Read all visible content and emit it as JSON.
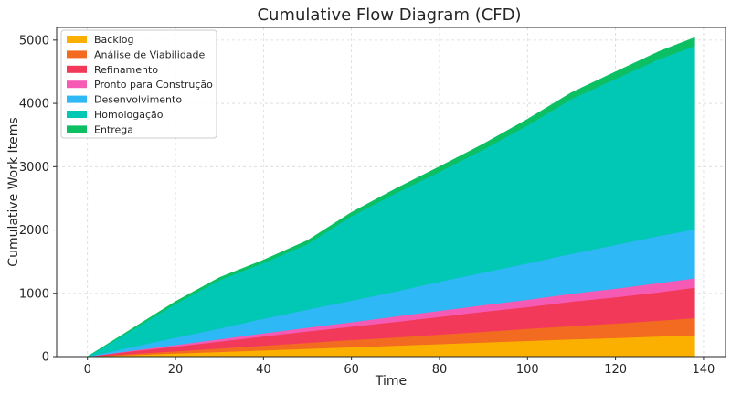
{
  "chart_data": {
    "type": "area",
    "stacked": true,
    "title": "Cumulative Flow Diagram (CFD)",
    "xlabel": "Time",
    "ylabel": "Cumulative Work Items",
    "xlim": [
      -7,
      145
    ],
    "ylim": [
      0,
      5200
    ],
    "xticks": [
      0,
      20,
      40,
      60,
      80,
      100,
      120,
      140
    ],
    "yticks": [
      0,
      1000,
      2000,
      3000,
      4000,
      5000
    ],
    "grid": true,
    "legend_position": "top-left",
    "x": [
      0,
      10,
      20,
      30,
      40,
      50,
      60,
      70,
      80,
      90,
      100,
      110,
      120,
      130,
      138
    ],
    "series": [
      {
        "name": "Backlog",
        "color": "#fbb000",
        "values": [
          0,
          25,
          50,
          75,
          100,
          125,
          150,
          175,
          200,
          225,
          250,
          275,
          295,
          320,
          340
        ]
      },
      {
        "name": "Análise de Viabilidade",
        "color": "#f26b21",
        "values": [
          0,
          20,
          35,
          55,
          75,
          95,
          115,
          130,
          150,
          170,
          190,
          210,
          230,
          250,
          270
        ]
      },
      {
        "name": "Refinamento",
        "color": "#f2395a",
        "values": [
          0,
          40,
          75,
          110,
          145,
          180,
          210,
          245,
          280,
          315,
          345,
          385,
          415,
          450,
          480
        ]
      },
      {
        "name": "Pronto para Construção",
        "color": "#f55bb5",
        "values": [
          0,
          10,
          25,
          35,
          50,
          60,
          70,
          85,
          95,
          105,
          115,
          125,
          135,
          145,
          150
        ]
      },
      {
        "name": "Desenvolvimento",
        "color": "#2eb8f5",
        "values": [
          0,
          55,
          115,
          170,
          230,
          285,
          340,
          395,
          460,
          515,
          575,
          630,
          690,
          745,
          770
        ]
      },
      {
        "name": "Homologação",
        "color": "#00c8b4",
        "values": [
          0,
          265,
          535,
          765,
          880,
          1035,
          1335,
          1550,
          1735,
          1945,
          2180,
          2445,
          2625,
          2795,
          2900
        ]
      },
      {
        "name": "Entrega",
        "color": "#0cbf63",
        "values": [
          0,
          20,
          35,
          40,
          45,
          55,
          60,
          70,
          80,
          85,
          95,
          100,
          110,
          120,
          130
        ]
      }
    ]
  }
}
